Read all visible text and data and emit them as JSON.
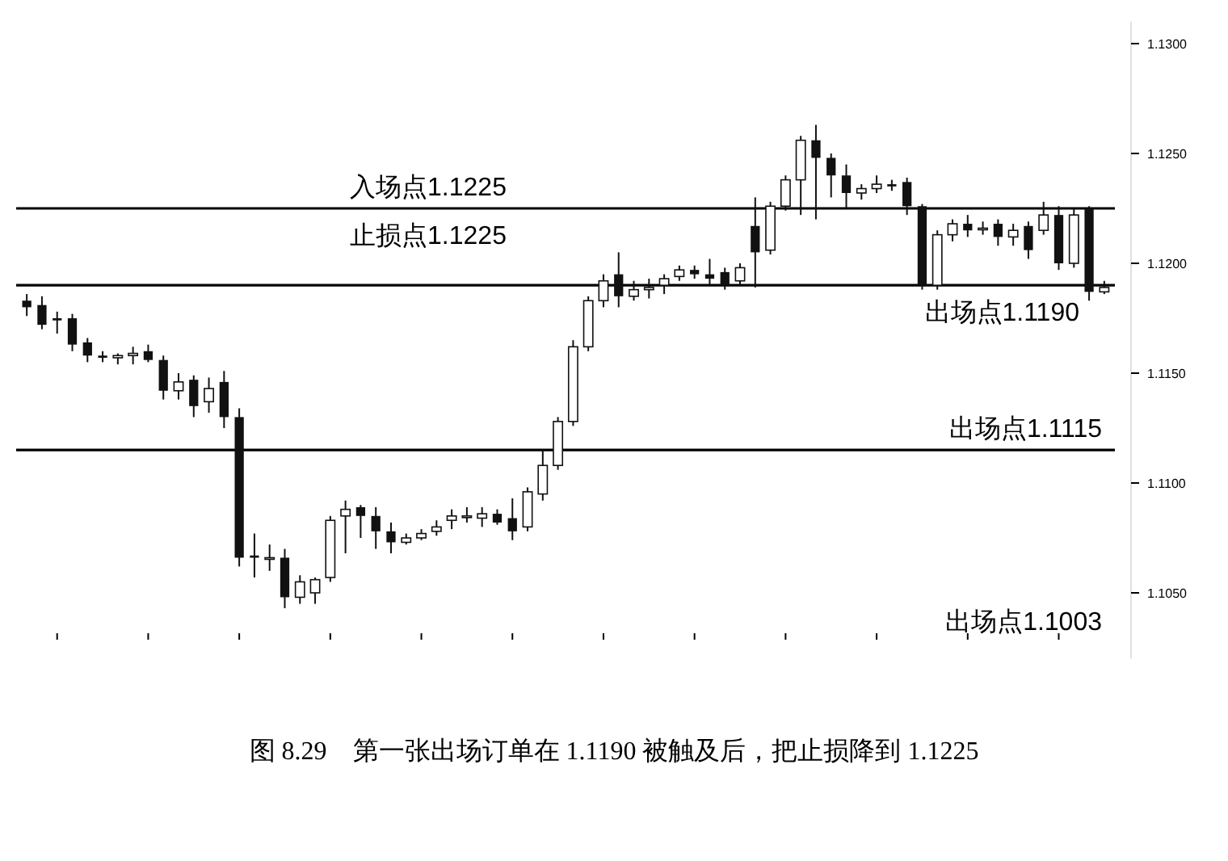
{
  "chart_data": {
    "type": "candlestick",
    "title": "图 8.29　第一张出场订单在 1.1190 被触及后，把止损降到 1.1225",
    "color": "#111111",
    "categories": [
      null,
      null,
      null,
      null,
      null,
      null,
      null,
      null,
      null,
      null,
      null,
      null,
      null,
      null,
      null,
      null,
      null,
      null,
      null,
      null,
      null,
      null,
      null,
      null,
      null,
      null,
      null,
      null,
      null,
      null,
      null,
      null,
      null,
      null,
      null,
      null,
      null,
      null,
      null,
      null,
      null,
      null,
      null,
      null,
      null,
      null,
      null,
      null,
      null,
      null,
      null,
      null,
      null,
      null,
      null,
      null,
      null,
      null,
      null,
      null,
      null,
      null,
      null,
      null,
      null,
      null,
      null,
      null,
      null,
      null,
      null,
      null
    ],
    "ohlc": [
      [
        1.1183,
        1.1186,
        1.1176,
        1.118
      ],
      [
        1.1181,
        1.1185,
        1.117,
        1.1172
      ],
      [
        1.1175,
        1.1178,
        1.1168,
        1.1174
      ],
      [
        1.1175,
        1.1177,
        1.116,
        1.1163
      ],
      [
        1.1164,
        1.1166,
        1.1155,
        1.1158
      ],
      [
        1.1158,
        1.116,
        1.1155,
        1.1157
      ],
      [
        1.1157,
        1.1159,
        1.1154,
        1.1158
      ],
      [
        1.1158,
        1.1162,
        1.1154,
        1.1159
      ],
      [
        1.116,
        1.1163,
        1.1155,
        1.1156
      ],
      [
        1.1156,
        1.1158,
        1.1138,
        1.1142
      ],
      [
        1.1142,
        1.115,
        1.1138,
        1.1146
      ],
      [
        1.1147,
        1.1149,
        1.113,
        1.1135
      ],
      [
        1.1137,
        1.1148,
        1.1132,
        1.1143
      ],
      [
        1.1146,
        1.1151,
        1.1125,
        1.113
      ],
      [
        1.113,
        1.1134,
        1.1062,
        1.1066
      ],
      [
        1.1067,
        1.1077,
        1.1057,
        1.1066
      ],
      [
        1.1066,
        1.1072,
        1.106,
        1.1066
      ],
      [
        1.1066,
        1.107,
        1.1043,
        1.1048
      ],
      [
        1.1048,
        1.1058,
        1.1045,
        1.1055
      ],
      [
        1.105,
        1.1057,
        1.1045,
        1.1056
      ],
      [
        1.1057,
        1.1085,
        1.1055,
        1.1083
      ],
      [
        1.1085,
        1.1092,
        1.1068,
        1.1088
      ],
      [
        1.1089,
        1.109,
        1.1075,
        1.1085
      ],
      [
        1.1085,
        1.1089,
        1.107,
        1.1078
      ],
      [
        1.1078,
        1.1082,
        1.1068,
        1.1073
      ],
      [
        1.1073,
        1.1077,
        1.1072,
        1.1075
      ],
      [
        1.1075,
        1.1079,
        1.1074,
        1.1077
      ],
      [
        1.1078,
        1.1083,
        1.1076,
        1.108
      ],
      [
        1.1083,
        1.1088,
        1.1079,
        1.1085
      ],
      [
        1.1085,
        1.1089,
        1.1082,
        1.1085
      ],
      [
        1.1084,
        1.1089,
        1.108,
        1.1086
      ],
      [
        1.1086,
        1.1088,
        1.1081,
        1.1082
      ],
      [
        1.1084,
        1.1093,
        1.1074,
        1.1078
      ],
      [
        1.108,
        1.1098,
        1.1078,
        1.1096
      ],
      [
        1.1095,
        1.1115,
        1.1092,
        1.1108
      ],
      [
        1.1108,
        1.113,
        1.1106,
        1.1128
      ],
      [
        1.1128,
        1.1165,
        1.1126,
        1.1162
      ],
      [
        1.1162,
        1.1185,
        1.116,
        1.1183
      ],
      [
        1.1183,
        1.1195,
        1.118,
        1.1192
      ],
      [
        1.1195,
        1.1205,
        1.118,
        1.1185
      ],
      [
        1.1185,
        1.1192,
        1.1183,
        1.1188
      ],
      [
        1.1188,
        1.1193,
        1.1184,
        1.1189
      ],
      [
        1.119,
        1.1195,
        1.1186,
        1.1193
      ],
      [
        1.1194,
        1.1199,
        1.1192,
        1.1197
      ],
      [
        1.1197,
        1.1199,
        1.1193,
        1.1195
      ],
      [
        1.1195,
        1.1202,
        1.119,
        1.1193
      ],
      [
        1.1196,
        1.1198,
        1.1188,
        1.119
      ],
      [
        1.1192,
        1.12,
        1.119,
        1.1198
      ],
      [
        1.1217,
        1.123,
        1.1189,
        1.1205
      ],
      [
        1.1206,
        1.1228,
        1.1204,
        1.1226
      ],
      [
        1.1226,
        1.124,
        1.1224,
        1.1238
      ],
      [
        1.1238,
        1.1258,
        1.1222,
        1.1256
      ],
      [
        1.1256,
        1.1263,
        1.122,
        1.1248
      ],
      [
        1.1248,
        1.125,
        1.123,
        1.124
      ],
      [
        1.124,
        1.1245,
        1.1225,
        1.1232
      ],
      [
        1.1232,
        1.1236,
        1.1229,
        1.1234
      ],
      [
        1.1234,
        1.124,
        1.1232,
        1.1236
      ],
      [
        1.1236,
        1.1238,
        1.1233,
        1.1235
      ],
      [
        1.1237,
        1.1239,
        1.1222,
        1.1226
      ],
      [
        1.1226,
        1.1227,
        1.1188,
        1.119
      ],
      [
        1.119,
        1.1215,
        1.1188,
        1.1213
      ],
      [
        1.1213,
        1.122,
        1.121,
        1.1218
      ],
      [
        1.1218,
        1.1222,
        1.1212,
        1.1215
      ],
      [
        1.1216,
        1.1219,
        1.1213,
        1.1216
      ],
      [
        1.1218,
        1.122,
        1.1208,
        1.1212
      ],
      [
        1.1212,
        1.1218,
        1.1208,
        1.1215
      ],
      [
        1.1217,
        1.1219,
        1.1202,
        1.1206
      ],
      [
        1.1215,
        1.1228,
        1.1213,
        1.1222
      ],
      [
        1.1222,
        1.1226,
        1.1197,
        1.12
      ],
      [
        1.12,
        1.1225,
        1.1198,
        1.1222
      ],
      [
        1.1225,
        1.1226,
        1.1183,
        1.1187
      ],
      [
        1.1187,
        1.1192,
        1.1186,
        1.1189
      ]
    ],
    "ylim": [
      1.102,
      1.131
    ],
    "yticks": [
      {
        "value": 1.105,
        "label": "1.1050"
      },
      {
        "value": 1.11,
        "label": "1.1100"
      },
      {
        "value": 1.115,
        "label": "1.1150"
      },
      {
        "value": 1.12,
        "label": "1.1200"
      },
      {
        "value": 1.125,
        "label": "1.1250"
      },
      {
        "value": 1.13,
        "label": "1.1300"
      }
    ],
    "tick_labels": "y",
    "ref_lines": [
      {
        "axis": "y",
        "value": 1.1225,
        "label": "入场点1.1225"
      },
      {
        "axis": "y",
        "value": 1.119,
        "label": "出场点1.1190"
      },
      {
        "axis": "y",
        "value": 1.1115,
        "label": "出场点1.1115"
      }
    ],
    "annotations": [
      {
        "text": "止损点1.1225",
        "y": 1.1225
      },
      "出场点1.1003"
    ]
  }
}
